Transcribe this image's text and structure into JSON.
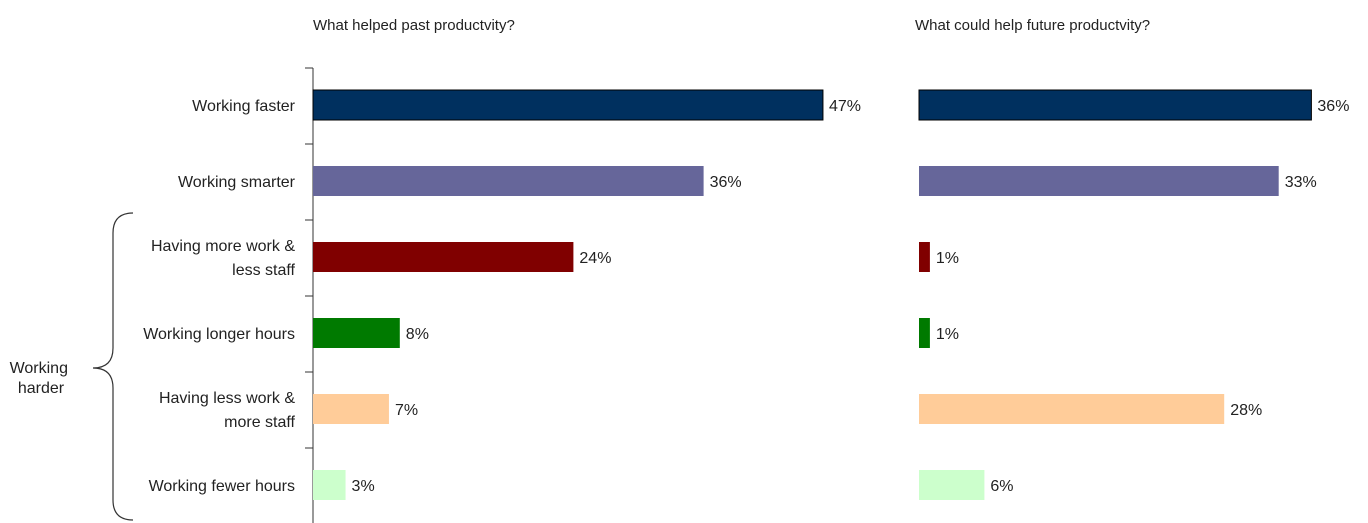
{
  "chart_data": [
    {
      "type": "bar",
      "orientation": "horizontal",
      "title": "What helped past productvity?",
      "categories": [
        [
          "Working faster"
        ],
        [
          "Working smarter"
        ],
        [
          "Having more work &",
          "less staff"
        ],
        [
          "Working longer hours"
        ],
        [
          "Having less work &",
          "more staff"
        ],
        [
          "Working fewer hours"
        ]
      ],
      "values": [
        47,
        36,
        24,
        8,
        7,
        3
      ],
      "value_labels": [
        "47%",
        "36%",
        "24%",
        "8%",
        "7%",
        "3%"
      ],
      "colors": [
        "#00305F",
        "#66669A",
        "#800000",
        "#007A00",
        "#FFCC99",
        "#CCFFCC"
      ],
      "xlim": [
        0,
        57
      ],
      "grid": false,
      "legend": "none"
    },
    {
      "type": "bar",
      "orientation": "horizontal",
      "title": "What could help future productvity?",
      "categories": [
        [
          "Working faster"
        ],
        [
          "Working smarter"
        ],
        [
          "Having more work &",
          "less staff"
        ],
        [
          "Working longer hours"
        ],
        [
          "Having less work &",
          "more staff"
        ],
        [
          "Working fewer hours"
        ]
      ],
      "values": [
        36,
        33,
        1,
        1,
        28,
        6
      ],
      "value_labels": [
        "36%",
        "33%",
        "1%",
        "1%",
        "28%",
        "6%"
      ],
      "colors": [
        "#00305F",
        "#66669A",
        "#800000",
        "#007A00",
        "#FFCC99",
        "#CCFFCC"
      ],
      "xlim": [
        0,
        40
      ],
      "grid": false,
      "legend": "none"
    }
  ],
  "bracket": {
    "label": [
      "Working",
      "harder"
    ]
  }
}
